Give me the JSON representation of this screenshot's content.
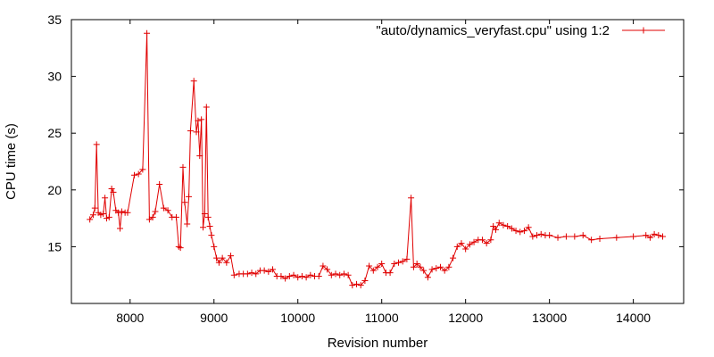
{
  "chart_data": {
    "type": "line",
    "title": "",
    "xlabel": "Revision number",
    "ylabel": "CPU time (s)",
    "xlim": [
      7300,
      14600
    ],
    "ylim": [
      10,
      35
    ],
    "xticks": [
      8000,
      9000,
      10000,
      11000,
      12000,
      13000,
      14000
    ],
    "yticks": [
      15,
      20,
      25,
      30,
      35
    ],
    "legend": {
      "position": "top-right"
    },
    "colors": {
      "series": "#e00000",
      "axis": "#000000"
    },
    "series": [
      {
        "name": "\"auto/dynamics_veryfast.cpu\" using 1:2",
        "marker": "plus",
        "points": [
          [
            7520,
            17.4
          ],
          [
            7560,
            17.8
          ],
          [
            7580,
            18.4
          ],
          [
            7600,
            24.0
          ],
          [
            7620,
            18.0
          ],
          [
            7650,
            17.8
          ],
          [
            7680,
            17.9
          ],
          [
            7700,
            19.3
          ],
          [
            7720,
            17.5
          ],
          [
            7750,
            17.6
          ],
          [
            7780,
            20.1
          ],
          [
            7800,
            19.8
          ],
          [
            7830,
            18.2
          ],
          [
            7860,
            18.0
          ],
          [
            7880,
            16.6
          ],
          [
            7900,
            18.1
          ],
          [
            7940,
            18.0
          ],
          [
            7970,
            18.0
          ],
          [
            8050,
            21.3
          ],
          [
            8100,
            21.4
          ],
          [
            8150,
            21.8
          ],
          [
            8200,
            33.8
          ],
          [
            8230,
            17.4
          ],
          [
            8270,
            17.6
          ],
          [
            8300,
            18.1
          ],
          [
            8350,
            20.5
          ],
          [
            8400,
            18.4
          ],
          [
            8450,
            18.2
          ],
          [
            8500,
            17.6
          ],
          [
            8550,
            17.6
          ],
          [
            8580,
            15.0
          ],
          [
            8600,
            14.9
          ],
          [
            8630,
            22.0
          ],
          [
            8650,
            18.9
          ],
          [
            8680,
            17.0
          ],
          [
            8700,
            19.4
          ],
          [
            8720,
            25.2
          ],
          [
            8760,
            29.6
          ],
          [
            8790,
            25.1
          ],
          [
            8810,
            26.1
          ],
          [
            8830,
            23.0
          ],
          [
            8850,
            26.2
          ],
          [
            8870,
            16.7
          ],
          [
            8890,
            17.9
          ],
          [
            8910,
            27.3
          ],
          [
            8930,
            17.6
          ],
          [
            8950,
            16.8
          ],
          [
            8970,
            16.0
          ],
          [
            9000,
            15.0
          ],
          [
            9030,
            14.0
          ],
          [
            9060,
            13.6
          ],
          [
            9100,
            14.0
          ],
          [
            9150,
            13.6
          ],
          [
            9200,
            14.2
          ],
          [
            9240,
            12.5
          ],
          [
            9300,
            12.6
          ],
          [
            9350,
            12.6
          ],
          [
            9400,
            12.6
          ],
          [
            9450,
            12.7
          ],
          [
            9500,
            12.6
          ],
          [
            9550,
            12.9
          ],
          [
            9600,
            12.9
          ],
          [
            9650,
            12.8
          ],
          [
            9700,
            13.0
          ],
          [
            9750,
            12.4
          ],
          [
            9800,
            12.4
          ],
          [
            9850,
            12.2
          ],
          [
            9900,
            12.4
          ],
          [
            9950,
            12.5
          ],
          [
            10000,
            12.3
          ],
          [
            10050,
            12.4
          ],
          [
            10100,
            12.3
          ],
          [
            10150,
            12.5
          ],
          [
            10200,
            12.4
          ],
          [
            10250,
            12.4
          ],
          [
            10300,
            13.3
          ],
          [
            10350,
            13.0
          ],
          [
            10400,
            12.5
          ],
          [
            10450,
            12.6
          ],
          [
            10500,
            12.5
          ],
          [
            10550,
            12.6
          ],
          [
            10600,
            12.5
          ],
          [
            10650,
            11.6
          ],
          [
            10700,
            11.7
          ],
          [
            10750,
            11.6
          ],
          [
            10800,
            12.0
          ],
          [
            10850,
            13.3
          ],
          [
            10900,
            12.9
          ],
          [
            10950,
            13.2
          ],
          [
            11000,
            13.5
          ],
          [
            11050,
            12.7
          ],
          [
            11100,
            12.7
          ],
          [
            11150,
            13.5
          ],
          [
            11200,
            13.6
          ],
          [
            11250,
            13.7
          ],
          [
            11300,
            13.9
          ],
          [
            11350,
            19.3
          ],
          [
            11380,
            13.2
          ],
          [
            11420,
            13.5
          ],
          [
            11460,
            13.2
          ],
          [
            11500,
            12.9
          ],
          [
            11550,
            12.3
          ],
          [
            11600,
            13.0
          ],
          [
            11650,
            13.1
          ],
          [
            11700,
            13.2
          ],
          [
            11750,
            12.9
          ],
          [
            11800,
            13.2
          ],
          [
            11850,
            14.0
          ],
          [
            11900,
            15.0
          ],
          [
            11950,
            15.3
          ],
          [
            12000,
            14.8
          ],
          [
            12050,
            15.2
          ],
          [
            12100,
            15.4
          ],
          [
            12150,
            15.6
          ],
          [
            12200,
            15.6
          ],
          [
            12250,
            15.3
          ],
          [
            12300,
            15.6
          ],
          [
            12330,
            16.8
          ],
          [
            12360,
            16.5
          ],
          [
            12400,
            17.1
          ],
          [
            12450,
            16.9
          ],
          [
            12500,
            16.8
          ],
          [
            12550,
            16.6
          ],
          [
            12600,
            16.4
          ],
          [
            12650,
            16.3
          ],
          [
            12700,
            16.4
          ],
          [
            12750,
            16.7
          ],
          [
            12800,
            15.9
          ],
          [
            12850,
            16.0
          ],
          [
            12900,
            16.1
          ],
          [
            12950,
            16.0
          ],
          [
            13000,
            16.0
          ],
          [
            13100,
            15.8
          ],
          [
            13200,
            15.9
          ],
          [
            13300,
            15.9
          ],
          [
            13400,
            16.0
          ],
          [
            13500,
            15.6
          ],
          [
            13600,
            15.7
          ],
          [
            13800,
            15.8
          ],
          [
            14000,
            15.9
          ],
          [
            14150,
            16.0
          ],
          [
            14200,
            15.8
          ],
          [
            14250,
            16.1
          ],
          [
            14300,
            16.0
          ],
          [
            14350,
            15.9
          ]
        ]
      }
    ]
  }
}
